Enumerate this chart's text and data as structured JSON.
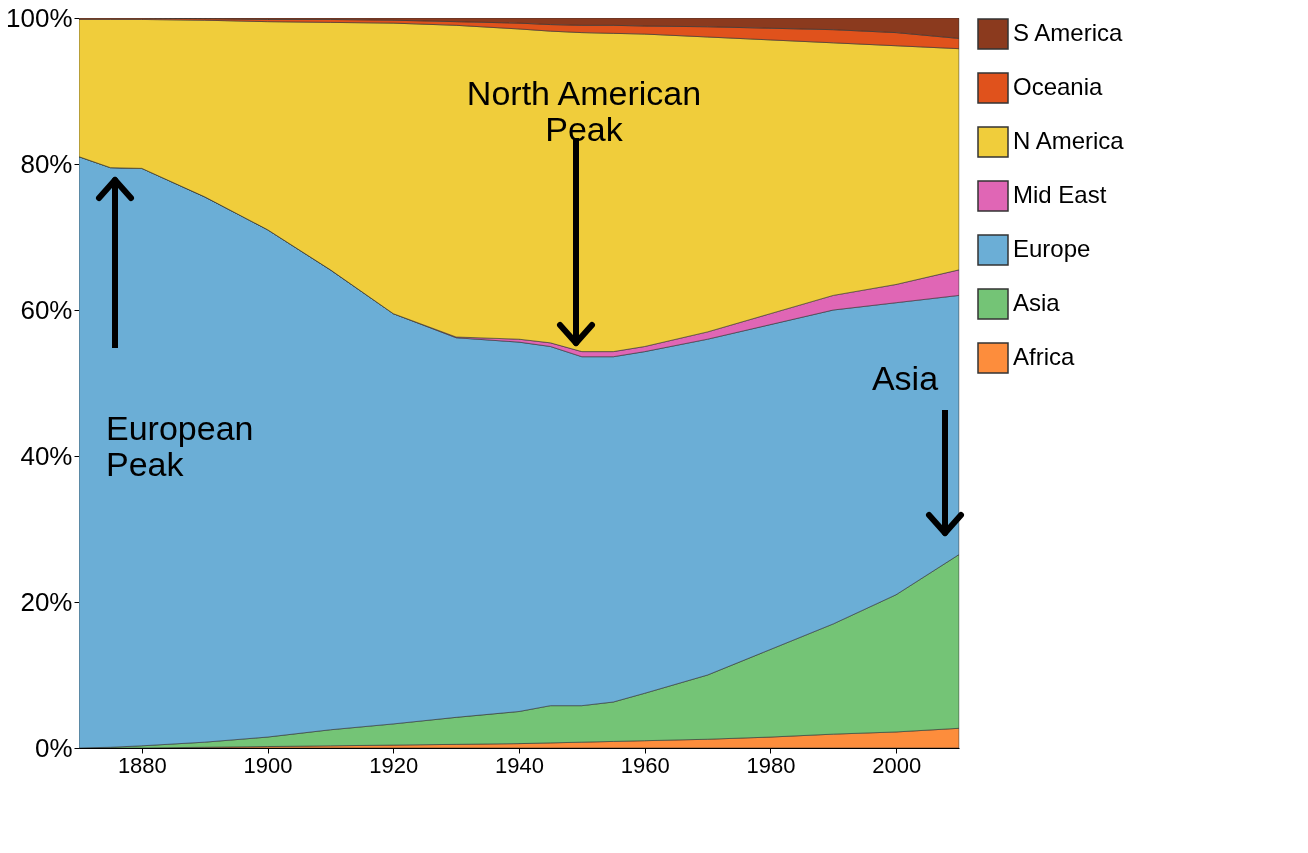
{
  "chart_data": {
    "type": "area",
    "stacked": true,
    "x": [
      1870,
      1875,
      1880,
      1890,
      1900,
      1910,
      1920,
      1930,
      1940,
      1945,
      1950,
      1955,
      1960,
      1970,
      1980,
      1990,
      2000,
      2010
    ],
    "xlim": [
      1870,
      2010
    ],
    "xticks": [
      1880,
      1900,
      1920,
      1940,
      1960,
      1980,
      2000
    ],
    "ylim": [
      0,
      100
    ],
    "yticks": [
      {
        "value": 0,
        "label": "0%"
      },
      {
        "value": 20,
        "label": "20%"
      },
      {
        "value": 40,
        "label": "40%"
      },
      {
        "value": 60,
        "label": "60%"
      },
      {
        "value": 80,
        "label": "80%"
      },
      {
        "value": 100,
        "label": "100%"
      }
    ],
    "grid": true,
    "legend": "right",
    "series": [
      {
        "name": "Africa",
        "color": "#fd8d3c",
        "values": [
          0,
          0,
          0,
          0.1,
          0.2,
          0.3,
          0.4,
          0.5,
          0.6,
          0.7,
          0.8,
          0.9,
          1.0,
          1.2,
          1.5,
          1.9,
          2.2,
          2.7
        ]
      },
      {
        "name": "Asia",
        "color": "#74c476",
        "values": [
          0,
          0.1,
          0.3,
          0.7,
          1.3,
          2.2,
          2.9,
          3.7,
          4.4,
          5.1,
          5.0,
          5.4,
          6.5,
          8.8,
          12,
          15.1,
          18.8,
          23.8
        ]
      },
      {
        "name": "Europe",
        "color": "#6baed6",
        "values": [
          81,
          79.4,
          79.1,
          74.7,
          69.5,
          63,
          56.2,
          52,
          50.6,
          49.2,
          47.8,
          47.3,
          46.8,
          46,
          44.5,
          43,
          40,
          35.5
        ]
      },
      {
        "name": "Mid East",
        "color": "#e066b5",
        "values": [
          0,
          0,
          0,
          0,
          0,
          0,
          0,
          0.1,
          0.4,
          0.5,
          0.7,
          0.7,
          0.7,
          1,
          1.5,
          2,
          2.5,
          3.5
        ]
      },
      {
        "name": "N America",
        "color": "#f0cd3b",
        "values": [
          18.8,
          20.3,
          20.4,
          24.2,
          28.5,
          33.9,
          39.8,
          42.7,
          42.5,
          42.7,
          43.7,
          43.6,
          42.8,
          40.4,
          37.5,
          34.6,
          32.7,
          30.3
        ]
      },
      {
        "name": "Oceania",
        "color": "#e0521c",
        "values": [
          0.2,
          0.2,
          0.2,
          0.2,
          0.3,
          0.4,
          0.4,
          0.5,
          0.8,
          0.9,
          1.0,
          1.1,
          1.1,
          1.4,
          1.6,
          1.8,
          1.8,
          1.4
        ]
      },
      {
        "name": "S America",
        "color": "#8b3a1e",
        "values": [
          0,
          0,
          0,
          0.1,
          0.2,
          0.2,
          0.3,
          0.5,
          0.7,
          0.9,
          1.0,
          1.0,
          1.1,
          1.2,
          1.4,
          1.6,
          2.0,
          2.8
        ]
      }
    ],
    "annotations": [
      "European\nPeak",
      "North American\nPeak",
      "Asia"
    ]
  }
}
